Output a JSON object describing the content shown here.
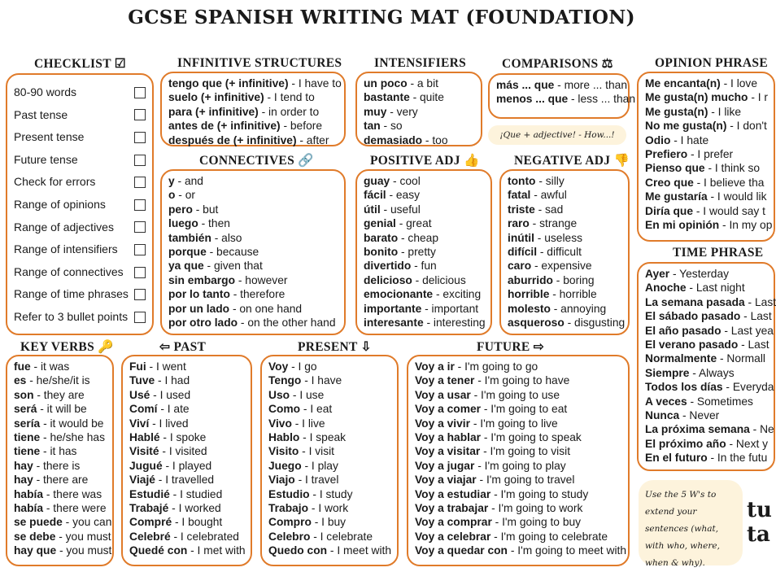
{
  "title": "GCSE SPANISH WRITING MAT (FOUNDATION)",
  "bubble": "¡Que + adjective! - How...!",
  "note": "Use the 5 W's to extend your sentences (what, with who, where, when & why).",
  "logo": "tu ta",
  "checklist": {
    "header": "CHECKLIST ☑",
    "items": [
      "80-90 words",
      "Past tense",
      "Present tense",
      "Future tense",
      "Check for errors",
      "Range of opinions",
      "Range of adjectives",
      "Range of intensifiers",
      "Range of connectives",
      "Range of time phrases",
      "Refer to 3 bullet points"
    ]
  },
  "sections": {
    "infinitive": {
      "header": "INFINITIVE STRUCTURES",
      "items": [
        {
          "b": "tengo que (+ infinitive)",
          "t": " - I have to"
        },
        {
          "b": "suelo (+ infinitive)",
          "t": " - I tend to"
        },
        {
          "b": "para (+ infinitive)",
          "t": " - in order to"
        },
        {
          "b": "antes de (+ infinitive)",
          "t": " - before"
        },
        {
          "b": "después de (+ infinitive)",
          "t": " - after"
        }
      ]
    },
    "intensifiers": {
      "header": "INTENSIFIERS",
      "items": [
        {
          "b": "un poco",
          "t": " - a bit"
        },
        {
          "b": "bastante",
          "t": " - quite"
        },
        {
          "b": "muy",
          "t": " - very"
        },
        {
          "b": "tan",
          "t": " - so"
        },
        {
          "b": "demasiado",
          "t": " - too"
        }
      ]
    },
    "comparisons": {
      "header": "COMPARISONS ⚖",
      "items": [
        {
          "b": "más ... que",
          "t": " - more ... than"
        },
        {
          "b": "menos ... que",
          "t": " - less ... than"
        }
      ]
    },
    "opinion": {
      "header": "OPINION PHRASE",
      "items": [
        {
          "b": "Me encanta(n)",
          "t": " - I love"
        },
        {
          "b": "Me gusta(n) mucho",
          "t": " - I r"
        },
        {
          "b": "Me gusta(n)",
          "t": " - I like"
        },
        {
          "b": "No me gusta(n)",
          "t": " - I don't"
        },
        {
          "b": "Odio",
          "t": " - I hate"
        },
        {
          "b": "Prefiero",
          "t": " - I prefer"
        },
        {
          "b": "Pienso que",
          "t": " - I think so"
        },
        {
          "b": "Creo que",
          "t": " - I believe tha"
        },
        {
          "b": "Me gustaría",
          "t": " - I would lik"
        },
        {
          "b": "Diría que",
          "t": " - I would say t"
        },
        {
          "b": "En mi opinión",
          "t": " - In my op"
        }
      ]
    },
    "connectives": {
      "header": "CONNECTIVES 🔗",
      "items": [
        {
          "b": "y",
          "t": " - and"
        },
        {
          "b": "o",
          "t": " - or"
        },
        {
          "b": "pero",
          "t": " - but"
        },
        {
          "b": "luego",
          "t": " - then"
        },
        {
          "b": "también",
          "t": " - also"
        },
        {
          "b": "porque",
          "t": " - because"
        },
        {
          "b": "ya que",
          "t": " - given that"
        },
        {
          "b": "sin embargo",
          "t": " - however"
        },
        {
          "b": "por lo tanto",
          "t": " - therefore"
        },
        {
          "b": "por un lado",
          "t": " - on one hand"
        },
        {
          "b": "por otro lado",
          "t": " - on the other hand"
        }
      ]
    },
    "positive": {
      "header": "POSITIVE ADJ 👍",
      "items": [
        {
          "b": "guay",
          "t": " - cool"
        },
        {
          "b": "fácil",
          "t": " - easy"
        },
        {
          "b": "útil",
          "t": " - useful"
        },
        {
          "b": "genial",
          "t": " - great"
        },
        {
          "b": "barato",
          "t": " - cheap"
        },
        {
          "b": "bonito",
          "t": " - pretty"
        },
        {
          "b": "divertido",
          "t": " - fun"
        },
        {
          "b": "delicioso",
          "t": " - delicious"
        },
        {
          "b": "emocionante",
          "t": " - exciting"
        },
        {
          "b": "importante",
          "t": " - important"
        },
        {
          "b": "interesante",
          "t": " - interesting"
        }
      ]
    },
    "negative": {
      "header": "NEGATIVE ADJ 👎",
      "items": [
        {
          "b": "tonto",
          "t": " - silly"
        },
        {
          "b": "fatal",
          "t": " - awful"
        },
        {
          "b": "triste",
          "t": " - sad"
        },
        {
          "b": "raro",
          "t": " - strange"
        },
        {
          "b": "inútil",
          "t": " - useless"
        },
        {
          "b": "difícil",
          "t": " - difficult"
        },
        {
          "b": "caro",
          "t": " - expensive"
        },
        {
          "b": "aburrido",
          "t": " - boring"
        },
        {
          "b": "horrible",
          "t": " - horrible"
        },
        {
          "b": "molesto",
          "t": " - annoying"
        },
        {
          "b": "asqueroso",
          "t": " - disgusting"
        }
      ]
    },
    "time": {
      "header": "TIME PHRASE",
      "items": [
        {
          "b": "Ayer",
          "t": " - Yesterday"
        },
        {
          "b": "Anoche",
          "t": " - Last night"
        },
        {
          "b": "La semana pasada",
          "t": " - Last"
        },
        {
          "b": "El sábado pasado",
          "t": " - Last"
        },
        {
          "b": "El año pasado",
          "t": " - Last yea"
        },
        {
          "b": "El verano pasado",
          "t": " - Last"
        },
        {
          "b": "Normalmente",
          "t": " - Normall"
        },
        {
          "b": "Siempre",
          "t": " - Always"
        },
        {
          "b": "Todos los días",
          "t": " - Everyda"
        },
        {
          "b": "A veces",
          "t": " - Sometimes"
        },
        {
          "b": "Nunca",
          "t": " - Never"
        },
        {
          "b": "La próxima semana",
          "t": " - Ne"
        },
        {
          "b": "El próximo año",
          "t": " - Next y"
        },
        {
          "b": "En el futuro",
          "t": " - In the futu"
        }
      ]
    },
    "keyverbs": {
      "header": "KEY VERBS 🔑",
      "items": [
        {
          "b": "fue",
          "t": " - it was"
        },
        {
          "b": "es",
          "t": " - he/she/it is"
        },
        {
          "b": "son",
          "t": " - they are"
        },
        {
          "b": "será",
          "t": " - it will be"
        },
        {
          "b": "sería",
          "t": " - it would be"
        },
        {
          "b": "tiene",
          "t": " - he/she has"
        },
        {
          "b": "tiene",
          "t": " - it has"
        },
        {
          "b": "hay",
          "t": " - there is"
        },
        {
          "b": "hay",
          "t": " - there are"
        },
        {
          "b": "había",
          "t": " - there was"
        },
        {
          "b": "había",
          "t": " - there were"
        },
        {
          "b": "se puede",
          "t": " - you can"
        },
        {
          "b": "se debe",
          "t": " - you must"
        },
        {
          "b": "hay que",
          "t": " - you must"
        }
      ]
    },
    "past": {
      "header": "⇦ PAST",
      "items": [
        {
          "b": "Fui",
          "t": " - I went"
        },
        {
          "b": "Tuve",
          "t": " - I had"
        },
        {
          "b": "Usé",
          "t": " - I used"
        },
        {
          "b": "Comí",
          "t": " - I ate"
        },
        {
          "b": "Viví",
          "t": " - I lived"
        },
        {
          "b": "Hablé",
          "t": " - I spoke"
        },
        {
          "b": "Visité",
          "t": " - I visited"
        },
        {
          "b": "Jugué",
          "t": " - I played"
        },
        {
          "b": "Viajé",
          "t": " - I travelled"
        },
        {
          "b": "Estudié",
          "t": " - I studied"
        },
        {
          "b": "Trabajé",
          "t": " - I worked"
        },
        {
          "b": "Compré",
          "t": " - I bought"
        },
        {
          "b": "Celebré",
          "t": " - I celebrated"
        },
        {
          "b": "Quedé con",
          "t": " - I met with"
        }
      ]
    },
    "present": {
      "header": "PRESENT ⇩",
      "items": [
        {
          "b": "Voy",
          "t": " - I go"
        },
        {
          "b": "Tengo",
          "t": " - I have"
        },
        {
          "b": "Uso",
          "t": " - I use"
        },
        {
          "b": "Como",
          "t": " - I eat"
        },
        {
          "b": "Vivo",
          "t": " - I live"
        },
        {
          "b": "Hablo",
          "t": " - I speak"
        },
        {
          "b": "Visito",
          "t": " - I visit"
        },
        {
          "b": "Juego",
          "t": " - I play"
        },
        {
          "b": "Viajo",
          "t": " - I travel"
        },
        {
          "b": "Estudio",
          "t": " - I study"
        },
        {
          "b": "Trabajo",
          "t": " - I work"
        },
        {
          "b": "Compro",
          "t": " - I buy"
        },
        {
          "b": "Celebro",
          "t": " - I celebrate"
        },
        {
          "b": "Quedo con",
          "t": " - I meet with"
        }
      ]
    },
    "future": {
      "header": "FUTURE ⇨",
      "items": [
        {
          "b": "Voy a ir",
          "t": " - I'm going to go"
        },
        {
          "b": "Voy a tener",
          "t": " - I'm going to have"
        },
        {
          "b": "Voy a usar",
          "t": " - I'm going to use"
        },
        {
          "b": "Voy a comer",
          "t": " - I'm going to eat"
        },
        {
          "b": "Voy a vivir",
          "t": " - I'm going to live"
        },
        {
          "b": "Voy a hablar",
          "t": " - I'm going to speak"
        },
        {
          "b": "Voy a visitar",
          "t": " - I'm going to visit"
        },
        {
          "b": "Voy a jugar",
          "t": " - I'm going to play"
        },
        {
          "b": "Voy a viajar",
          "t": " - I'm going to travel"
        },
        {
          "b": "Voy a estudiar",
          "t": " - I'm going to study"
        },
        {
          "b": "Voy a trabajar",
          "t": " - I'm going to work"
        },
        {
          "b": "Voy a comprar",
          "t": " - I'm going to buy"
        },
        {
          "b": "Voy a celebrar",
          "t": " - I'm going to celebrate"
        },
        {
          "b": "Voy a quedar con",
          "t": " - I'm going to meet with"
        }
      ]
    }
  },
  "colors": {
    "border": "#e07b2a",
    "note_bg": "#fdf3dc"
  }
}
